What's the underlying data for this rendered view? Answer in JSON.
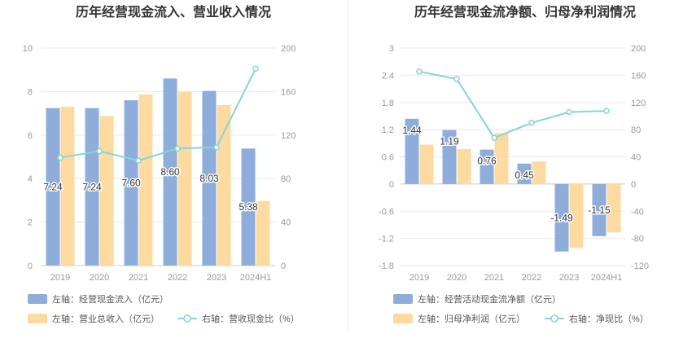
{
  "chart_data": [
    {
      "type": "bar+line",
      "title": "历年经营现金流入、营业收入情况",
      "categories": [
        "2019",
        "2020",
        "2021",
        "2022",
        "2023",
        "2024H1"
      ],
      "left_axis": {
        "min": 0,
        "max": 10,
        "ticks": [
          0,
          2,
          4,
          6,
          8,
          10
        ]
      },
      "right_axis": {
        "min": 0,
        "max": 200,
        "ticks": [
          0,
          40,
          80,
          120,
          160,
          200
        ]
      },
      "series": [
        {
          "name": "左轴：经营现金流入（亿元）",
          "kind": "bar",
          "axis": "left",
          "color": "#8eaddb",
          "values": [
            7.24,
            7.24,
            7.6,
            8.6,
            8.03,
            5.38
          ],
          "labels": [
            "7.24",
            "7.24",
            "7.60",
            "8.60",
            "8.03",
            "5.38"
          ]
        },
        {
          "name": "左轴：营业总收入（亿元）",
          "kind": "bar",
          "axis": "left",
          "color": "#fddba0",
          "values": [
            7.3,
            6.88,
            7.87,
            7.99,
            7.38,
            2.97
          ]
        },
        {
          "name": "右轴：营收现金比（%）",
          "kind": "line",
          "axis": "right",
          "color": "#86d4d8",
          "values": [
            99.2,
            105.2,
            96.6,
            107.6,
            108.8,
            181.1
          ]
        }
      ]
    },
    {
      "type": "bar+line",
      "title": "历年经营现金流净额、归母净利润情况",
      "categories": [
        "2019",
        "2020",
        "2021",
        "2022",
        "2023",
        "2024H1"
      ],
      "left_axis": {
        "min": -1.8,
        "max": 3,
        "ticks": [
          -1.8,
          -1.2,
          -0.6,
          0,
          0.6,
          1.2,
          1.8,
          2.4,
          3
        ]
      },
      "right_axis": {
        "min": -120,
        "max": 200,
        "ticks": [
          -120,
          -80,
          -40,
          0,
          40,
          80,
          120,
          160,
          200
        ]
      },
      "series": [
        {
          "name": "左轴：经营活动现金流净额（亿元）",
          "kind": "bar",
          "axis": "left",
          "color": "#8eaddb",
          "values": [
            1.44,
            1.19,
            0.76,
            0.45,
            -1.49,
            -1.15
          ],
          "labels": [
            "1.44",
            "1.19",
            "0.76",
            "0.45",
            "-1.49",
            "-1.15"
          ]
        },
        {
          "name": "左轴：归母净利润（亿元）",
          "kind": "bar",
          "axis": "left",
          "color": "#fddba0",
          "values": [
            0.87,
            0.77,
            1.12,
            0.5,
            -1.41,
            -1.07
          ]
        },
        {
          "name": "右轴：净现比（%）",
          "kind": "line",
          "axis": "right",
          "color": "#86d4d8",
          "values": [
            165.5,
            154.5,
            67.9,
            90.0,
            105.7,
            107.5
          ]
        }
      ]
    }
  ]
}
